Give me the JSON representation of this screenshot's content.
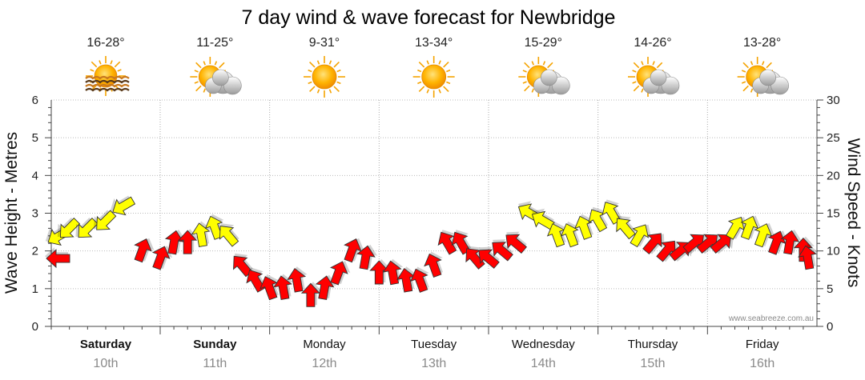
{
  "chart_data": {
    "type": "line",
    "title": "7 day wind & wave forecast for Newbridge",
    "ylabel_left": "Wave Height - Metres",
    "ylabel_right": "Wind Speed - Knots",
    "ylim_left": [
      0,
      6
    ],
    "yticks_left": [
      "0",
      "1",
      "2",
      "3",
      "4",
      "5",
      "6"
    ],
    "ylim_right": [
      0,
      30
    ],
    "yticks_right": [
      "0",
      "5",
      "10",
      "15",
      "20",
      "25",
      "30"
    ],
    "grid": true,
    "watermark": "www.seabreeze.com.au",
    "days": [
      {
        "day": "Saturday",
        "date": "10th",
        "temp": "16-28°",
        "icon": "sun-waves-icon",
        "weekend": true
      },
      {
        "day": "Sunday",
        "date": "11th",
        "temp": "11-25°",
        "icon": "sun-cloud-icon",
        "weekend": true
      },
      {
        "day": "Monday",
        "date": "12th",
        "temp": "9-31°",
        "icon": "sun-icon",
        "weekend": false
      },
      {
        "day": "Tuesday",
        "date": "13th",
        "temp": "13-34°",
        "icon": "sun-icon",
        "weekend": false
      },
      {
        "day": "Wednesday",
        "date": "14th",
        "temp": "15-29°",
        "icon": "sun-cloud-icon",
        "weekend": false
      },
      {
        "day": "Thursday",
        "date": "15th",
        "temp": "14-26°",
        "icon": "sun-cloud-icon",
        "weekend": false
      },
      {
        "day": "Friday",
        "date": "16th",
        "temp": "13-28°",
        "icon": "sun-cloud-icon",
        "weekend": false
      }
    ],
    "series": [
      {
        "name": "",
        "unit": "knots",
        "colors": {
          "low": "#ff0000",
          "high": "#ffff00"
        },
        "threshold": 12,
        "x_hours": [
          0,
          6,
          9,
          12,
          15,
          18,
          21,
          24,
          27,
          30,
          33,
          36,
          39,
          42,
          45,
          48,
          51,
          54,
          57,
          60,
          63,
          66,
          69,
          72,
          75,
          78,
          81,
          84,
          87,
          90,
          93,
          96,
          99,
          102,
          105,
          108,
          111,
          114,
          117,
          120,
          123,
          126,
          129,
          132,
          135,
          138,
          141,
          144,
          147,
          150,
          153,
          156,
          159,
          162,
          165,
          166
        ],
        "values": [
          9,
          12,
          13,
          13,
          14,
          16,
          10,
          9,
          11,
          11,
          12,
          13,
          12,
          8,
          6,
          5,
          5,
          6,
          4,
          5,
          7,
          10,
          9,
          7,
          7,
          6,
          6,
          8,
          11,
          11,
          9,
          9,
          10,
          11,
          15,
          14,
          12,
          12,
          13,
          14,
          15,
          13,
          12,
          11,
          10,
          10,
          11,
          11,
          11,
          13,
          13,
          12,
          11,
          11,
          10,
          9
        ],
        "direction_deg": [
          90,
          60,
          45,
          45,
          45,
          60,
          200,
          200,
          190,
          180,
          170,
          160,
          140,
          140,
          150,
          160,
          170,
          170,
          180,
          190,
          200,
          200,
          190,
          180,
          170,
          170,
          160,
          160,
          150,
          150,
          140,
          130,
          130,
          130,
          120,
          120,
          160,
          160,
          160,
          150,
          150,
          140,
          210,
          220,
          220,
          230,
          230,
          230,
          230,
          210,
          200,
          200,
          200,
          190,
          180,
          170
        ]
      }
    ]
  }
}
